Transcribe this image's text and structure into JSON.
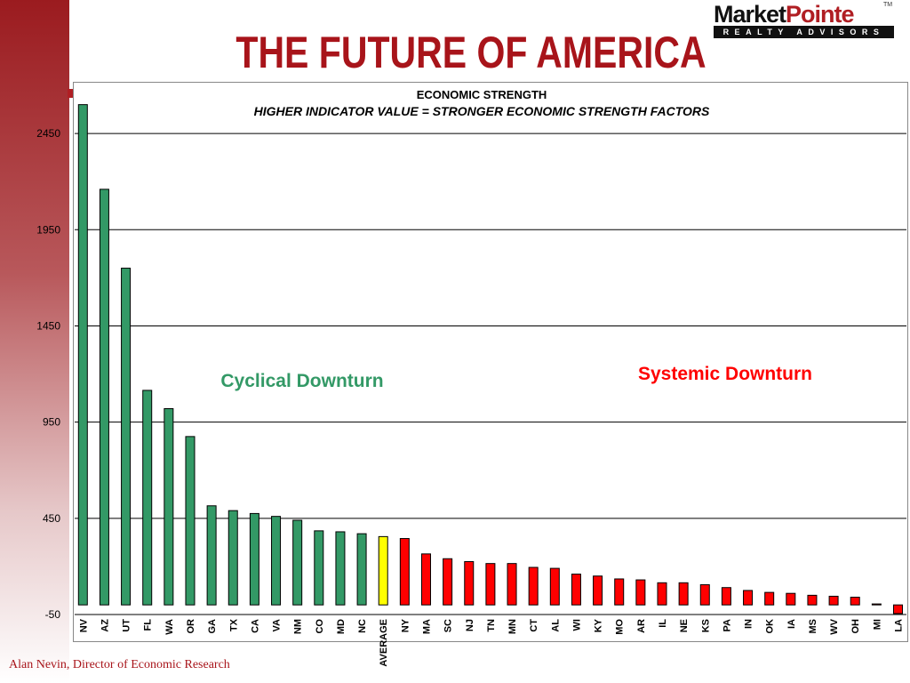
{
  "slide": {
    "title": "THE FUTURE OF AMERICA",
    "footer": "Alan Nevin, Director of Economic Research"
  },
  "logo": {
    "brand_part1": "Market",
    "brand_part2": "Pointe",
    "trademark": "TM",
    "tagline": "REALTY ADVISORS"
  },
  "colors": {
    "green": "#339966",
    "red": "#ff0000",
    "yellow": "#ffff00",
    "title_red": "#a8141a"
  },
  "chart_data": {
    "type": "bar",
    "title": "ECONOMIC STRENGTH",
    "subtitle": "HIGHER INDICATOR VALUE = STRONGER ECONOMIC STRENGTH FACTORS",
    "ylim": [
      -50,
      2700
    ],
    "yticks": [
      -50,
      450,
      950,
      1450,
      1950,
      2450
    ],
    "grid": true,
    "categories": [
      "NV",
      "AZ",
      "UT",
      "FL",
      "WA",
      "OR",
      "GA",
      "TX",
      "CA",
      "VA",
      "NM",
      "CO",
      "MD",
      "NC",
      "AVERAGE",
      "NY",
      "MA",
      "SC",
      "NJ",
      "TN",
      "MN",
      "CT",
      "AL",
      "WI",
      "KY",
      "MO",
      "AR",
      "IL",
      "NE",
      "KS",
      "PA",
      "IN",
      "OK",
      "IA",
      "MS",
      "WV",
      "OH",
      "MI",
      "LA"
    ],
    "values": [
      2600,
      2160,
      1750,
      1115,
      1020,
      875,
      515,
      490,
      475,
      460,
      440,
      385,
      380,
      370,
      355,
      345,
      265,
      240,
      225,
      215,
      215,
      195,
      190,
      160,
      150,
      135,
      130,
      115,
      115,
      105,
      90,
      75,
      65,
      60,
      50,
      45,
      40,
      5,
      -45
    ],
    "bar_colors": [
      "green",
      "green",
      "green",
      "green",
      "green",
      "green",
      "green",
      "green",
      "green",
      "green",
      "green",
      "green",
      "green",
      "green",
      "yellow",
      "red",
      "red",
      "red",
      "red",
      "red",
      "red",
      "red",
      "red",
      "red",
      "red",
      "red",
      "red",
      "red",
      "red",
      "red",
      "red",
      "red",
      "red",
      "red",
      "red",
      "red",
      "red",
      "red",
      "red"
    ],
    "annotations": [
      {
        "text": "Cyclical Downturn",
        "color": "green"
      },
      {
        "text": "Systemic Downturn",
        "color": "red"
      }
    ]
  }
}
